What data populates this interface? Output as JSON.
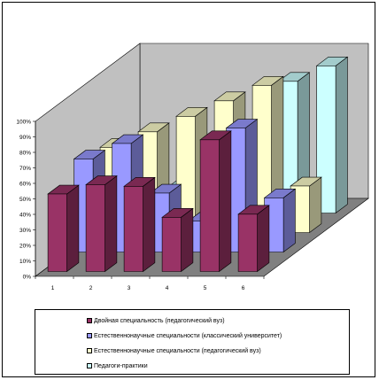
{
  "chart_data": {
    "type": "bar",
    "subtype": "3d-clustered-column",
    "title": "",
    "xlabel": "",
    "ylabel": "",
    "categories": [
      "1",
      "2",
      "3",
      "4",
      "5",
      "6"
    ],
    "ylim": [
      0,
      100
    ],
    "y_ticks": [
      "0%",
      "10%",
      "20%",
      "30%",
      "40%",
      "50%",
      "60%",
      "70%",
      "80%",
      "90%",
      "100%"
    ],
    "grid": false,
    "legend_position": "bottom",
    "series": [
      {
        "name": "Двойная специальность (педагогический вуз)",
        "color": "#993366",
        "values": [
          50,
          56,
          55,
          35,
          85,
          37
        ]
      },
      {
        "name": "Естественнонаучные специальности (классический университет)",
        "color": "#9999ff",
        "values": [
          60,
          70,
          38,
          20,
          80,
          35
        ]
      },
      {
        "name": "Естественнонаучные специальности (педагогический вуз)",
        "color": "#ffffcc",
        "values": [
          55,
          65,
          75,
          85,
          95,
          30
        ]
      },
      {
        "name": "Педагоги-практики",
        "color": "#ccffff",
        "values": [
          10,
          15,
          20,
          40,
          85,
          95
        ]
      }
    ]
  }
}
